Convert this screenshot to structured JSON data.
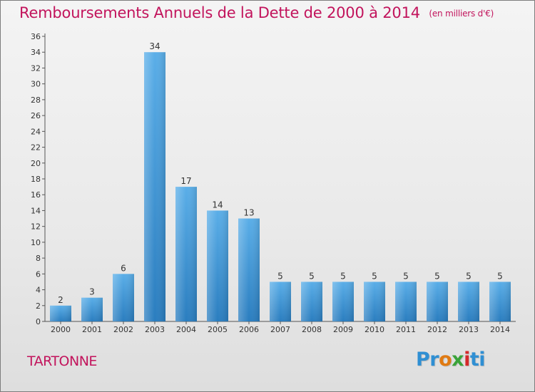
{
  "header": {
    "title": "Remboursements Annuels de la Dette de 2000 à 2014",
    "subtitle": "(en milliers d'€)"
  },
  "footer": {
    "town": "TARTONNE",
    "logo_text": "Proxiti"
  },
  "colors": {
    "title": "#c2145c",
    "bar_top": "#5aaee8",
    "bar_bottom": "#2a7dbf",
    "axis": "#555555"
  },
  "chart_data": {
    "type": "bar",
    "title": "Remboursements Annuels de la Dette de 2000 à 2014",
    "subtitle": "(en milliers d'€)",
    "categories": [
      "2000",
      "2001",
      "2002",
      "2003",
      "2004",
      "2005",
      "2006",
      "2007",
      "2008",
      "2009",
      "2010",
      "2011",
      "2012",
      "2013",
      "2014"
    ],
    "values": [
      2,
      3,
      6,
      34,
      17,
      14,
      13,
      5,
      5,
      5,
      5,
      5,
      5,
      5,
      5
    ],
    "data_labels": [
      "2",
      "3",
      "6",
      "34",
      "17",
      "14",
      "13",
      "5",
      "5",
      "5",
      "5",
      "5",
      "5",
      "5",
      "5"
    ],
    "ylim": [
      0,
      36
    ],
    "yticks": [
      0,
      2,
      4,
      6,
      8,
      10,
      12,
      14,
      16,
      18,
      20,
      22,
      24,
      26,
      28,
      30,
      32,
      34,
      36
    ],
    "grid": false,
    "legend": "none",
    "xlabel": "",
    "ylabel": ""
  }
}
